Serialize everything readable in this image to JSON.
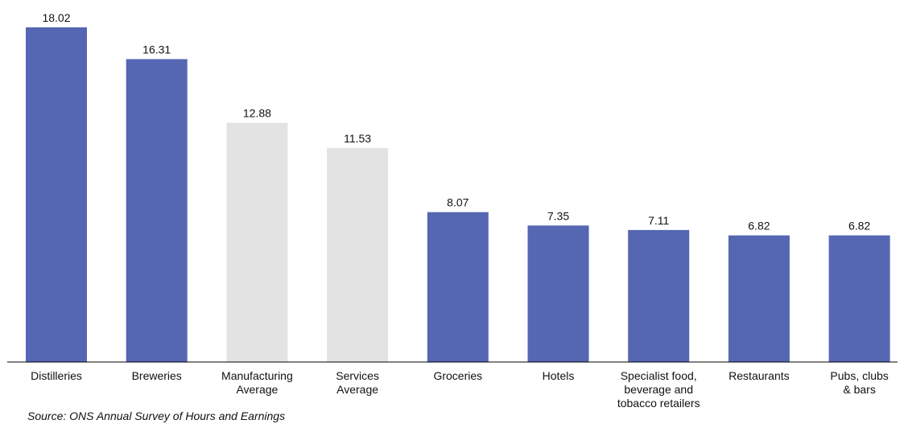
{
  "chart_data": {
    "type": "bar",
    "categories": [
      "Distilleries",
      "Breweries",
      "Manufacturing Average",
      "Services Average",
      "Groceries",
      "Hotels",
      "Specialist food, beverage and tobacco retailers",
      "Restaurants",
      "Pubs, clubs & bars"
    ],
    "category_label_lines": [
      [
        "Distilleries"
      ],
      [
        "Breweries"
      ],
      [
        "Manufacturing",
        "Average"
      ],
      [
        "Services",
        "Average"
      ],
      [
        "Groceries"
      ],
      [
        "Hotels"
      ],
      [
        "Specialist food,",
        "beverage and",
        "tobacco retailers"
      ],
      [
        "Restaurants"
      ],
      [
        "Pubs, clubs",
        "& bars"
      ]
    ],
    "values": [
      18.02,
      16.31,
      12.88,
      11.53,
      8.07,
      7.35,
      7.11,
      6.82,
      6.82
    ],
    "value_labels": [
      "18.02",
      "16.31",
      "12.88",
      "11.53",
      "8.07",
      "7.35",
      "7.11",
      "6.82",
      "6.82"
    ],
    "bar_colors": [
      "#5566b3",
      "#5566b3",
      "#e3e3e3",
      "#e3e3e3",
      "#5566b3",
      "#5566b3",
      "#5566b3",
      "#5566b3",
      "#5566b3"
    ],
    "title": "",
    "xlabel": "",
    "ylabel": "",
    "ylim": [
      0,
      18.02
    ],
    "grid": false,
    "legend": "none"
  },
  "source_note": "Source: ONS Annual Survey of Hours and Earnings",
  "colors": {
    "highlight_bar": "#5566b3",
    "average_bar": "#e3e3e3",
    "axis": "#000000",
    "text": "#111111"
  }
}
